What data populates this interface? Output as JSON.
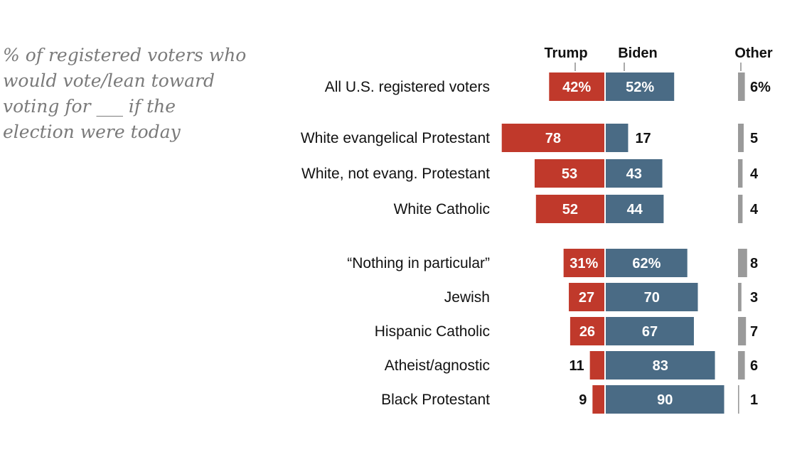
{
  "subtitle_lines": [
    "% of registered voters who",
    "would vote/lean toward",
    "voting for ___ if the",
    "election were today"
  ],
  "chart_data": {
    "type": "bar",
    "subtitle": "% of registered voters who would vote/lean toward voting for ___ if the election were today",
    "series_headers": [
      "Trump",
      "Biden",
      "Other"
    ],
    "categories": [
      "All U.S. registered voters",
      "White evangelical Protestant",
      "White, not evang. Protestant",
      "White Catholic",
      "“Nothing in particular”",
      "Jewish",
      "Hispanic Catholic",
      "Atheist/agnostic",
      "Black Protestant"
    ],
    "series": [
      {
        "name": "Trump",
        "values": [
          42,
          78,
          53,
          52,
          31,
          27,
          26,
          11,
          9
        ]
      },
      {
        "name": "Biden",
        "values": [
          52,
          17,
          43,
          44,
          62,
          70,
          67,
          83,
          90
        ]
      },
      {
        "name": "Other",
        "values": [
          6,
          5,
          4,
          4,
          8,
          3,
          7,
          6,
          1
        ]
      }
    ],
    "labels": {
      "trump": [
        "42%",
        "78",
        "53",
        "52",
        "31%",
        "27",
        "26",
        "11",
        "9"
      ],
      "biden": [
        "52%",
        "17",
        "43",
        "44",
        "62%",
        "70",
        "67",
        "83",
        "90"
      ],
      "other": [
        "6%",
        "5",
        "4",
        "4",
        "8",
        "3",
        "7",
        "6",
        "1"
      ]
    },
    "colors": {
      "trump": "#c0392b",
      "biden": "#4a6b85",
      "other": "#9a9a9a"
    }
  }
}
